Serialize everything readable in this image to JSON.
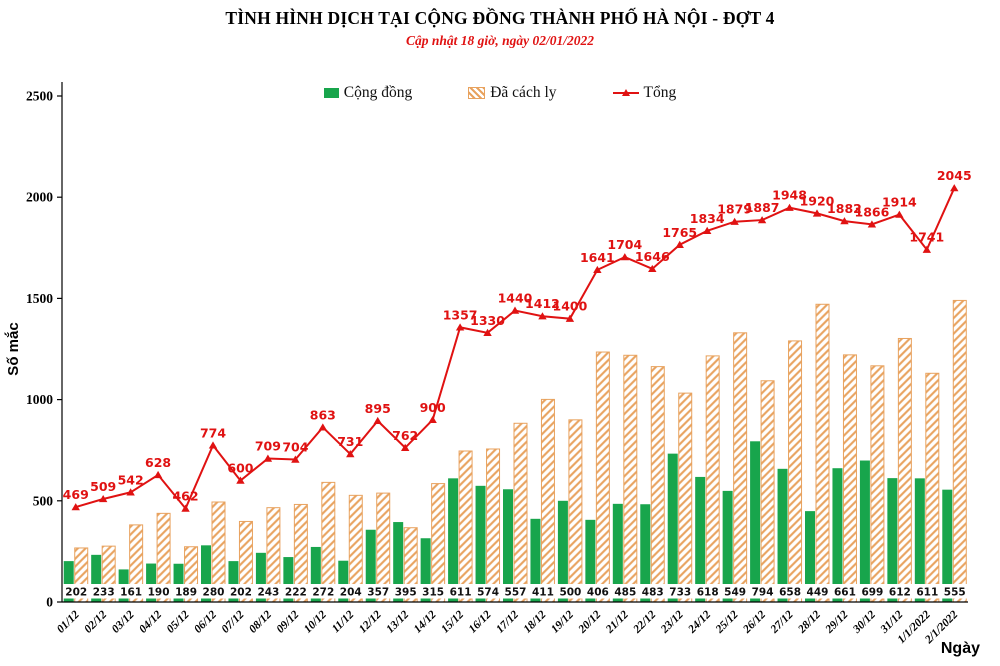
{
  "header": {
    "title": "TÌNH HÌNH DỊCH TẠI CỘNG ĐỒNG THÀNH PHỐ HÀ NỘI - ĐỢT 4",
    "subtitle": "Cập nhật 18 giờ, ngày 02/01/2022"
  },
  "legend": {
    "items": [
      {
        "label": "Cộng đồng",
        "swatch": "solid-green-square"
      },
      {
        "label": "Đã cách ly",
        "swatch": "orange-hatched-square"
      },
      {
        "label": "Tổng",
        "swatch": "red-line-triangle-marker"
      }
    ]
  },
  "axes": {
    "y_label": "Số mắc",
    "x_label": "Ngày",
    "y_ticks": [
      0,
      500,
      1000,
      1500,
      2000,
      2500
    ],
    "y_max": 2500
  },
  "colors": {
    "community_bar": "#18a54c",
    "quarantine_stripe": "#e8a25e",
    "total_line": "#e01212",
    "axis": "#000000",
    "label_text": "#1a1a1a"
  },
  "chart_data": {
    "type": "bar+line",
    "title": "TÌNH HÌNH DỊCH TẠI CỘNG ĐỒNG THÀNH PHỐ HÀ NỘI - ĐỢT 4",
    "subtitle": "Cập nhật 18 giờ, ngày 02/01/2022",
    "xlabel": "Ngày",
    "ylabel": "Số mắc",
    "ylim": [
      0,
      2500
    ],
    "grid": false,
    "legend_position": "top",
    "categories": [
      "01/12",
      "02/12",
      "03/12",
      "04/12",
      "05/12",
      "06/12",
      "07/12",
      "08/12",
      "09/12",
      "10/12",
      "11/12",
      "12/12",
      "13/12",
      "14/12",
      "15/12",
      "16/12",
      "17/12",
      "18/12",
      "19/12",
      "20/12",
      "21/12",
      "22/12",
      "23/12",
      "24/12",
      "25/12",
      "26/12",
      "27/12",
      "28/12",
      "29/12",
      "30/12",
      "31/12",
      "1/1/2022",
      "2/1/2022"
    ],
    "series": [
      {
        "name": "Cộng đồng",
        "type": "bar",
        "style": "solid",
        "color": "#18a54c",
        "labeled": true,
        "values": [
          202,
          233,
          161,
          190,
          189,
          280,
          202,
          243,
          222,
          272,
          204,
          357,
          395,
          315,
          611,
          574,
          557,
          411,
          500,
          406,
          485,
          483,
          733,
          618,
          549,
          794,
          658,
          449,
          661,
          699,
          612,
          611,
          555
        ]
      },
      {
        "name": "Đã cách ly",
        "type": "bar",
        "style": "hatched",
        "color": "#e8a25e",
        "labeled": false,
        "values": [
          267,
          276,
          381,
          438,
          273,
          494,
          398,
          466,
          482,
          591,
          527,
          538,
          367,
          585,
          746,
          756,
          883,
          1001,
          900,
          1235,
          1219,
          1163,
          1032,
          1216,
          1330,
          1093,
          1290,
          1471,
          1221,
          1167,
          1302,
          1130,
          1490
        ]
      },
      {
        "name": "Tổng",
        "type": "line",
        "marker": "triangle",
        "color": "#e01212",
        "labeled": true,
        "values": [
          469,
          509,
          542,
          628,
          462,
          774,
          600,
          709,
          704,
          863,
          731,
          895,
          762,
          900,
          1357,
          1330,
          1440,
          1412,
          1400,
          1641,
          1704,
          1646,
          1765,
          1834,
          1879,
          1887,
          1948,
          1920,
          1882,
          1866,
          1914,
          1741,
          2045
        ]
      }
    ]
  }
}
